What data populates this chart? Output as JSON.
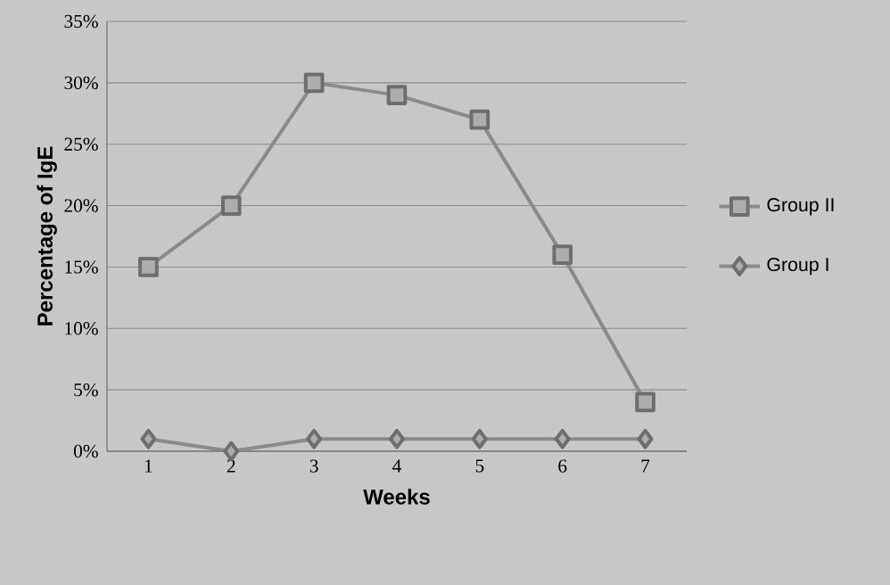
{
  "chart_data": {
    "type": "line",
    "xlabel": "Weeks",
    "ylabel": "Percentage of IgE",
    "categories": [
      "1",
      "2",
      "3",
      "4",
      "5",
      "6",
      "7"
    ],
    "series": [
      {
        "name": "Group II",
        "color": "#8a8a8a",
        "marker": "square",
        "values": [
          15,
          20,
          30,
          29,
          27,
          16,
          4
        ]
      },
      {
        "name": "Group I",
        "color": "#8a8a8a",
        "marker": "diamond",
        "values": [
          1,
          0,
          1,
          1,
          1,
          1,
          1
        ]
      }
    ],
    "ylim": [
      0,
      35
    ],
    "yticks": [
      {
        "value": 0,
        "label": "0%"
      },
      {
        "value": 5,
        "label": "5%"
      },
      {
        "value": 10,
        "label": "10%"
      },
      {
        "value": 15,
        "label": "15%"
      },
      {
        "value": 20,
        "label": "20%"
      },
      {
        "value": 25,
        "label": "25%"
      },
      {
        "value": 30,
        "label": "30%"
      },
      {
        "value": 35,
        "label": "35%"
      }
    ],
    "grid": "y",
    "legend": "right",
    "line_style": "solid"
  }
}
